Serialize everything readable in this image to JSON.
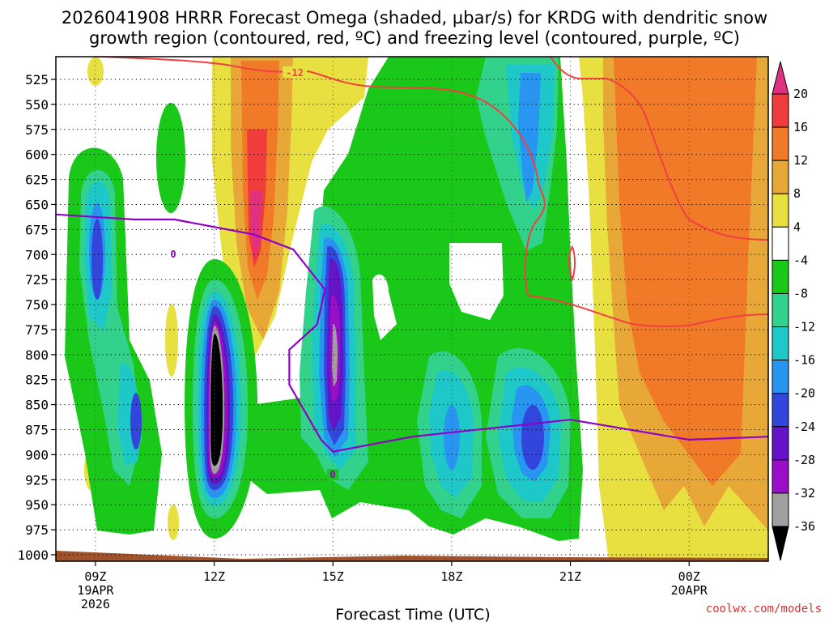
{
  "title_line1": "2026041908 HRRR Forecast Omega (shaded, µbar/s) for KRDG with dendritic snow",
  "title_line2": "growth region (contoured, red, ºC) and freezing level (contoured, purple, ºC)",
  "x_axis_label": "Forecast Time (UTC)",
  "credit": "coolwx.com/models",
  "colors": {
    "red_contour": "#f04040",
    "purple_contour": "#9000c8",
    "ground": "#a0522d"
  },
  "chart_data": {
    "type": "heatmap",
    "x_ticks": [
      {
        "hour": 9,
        "label": "09Z",
        "sub": [
          "19APR",
          "2026"
        ]
      },
      {
        "hour": 12,
        "label": "12Z",
        "sub": []
      },
      {
        "hour": 15,
        "label": "15Z",
        "sub": []
      },
      {
        "hour": 18,
        "label": "18Z",
        "sub": []
      },
      {
        "hour": 21,
        "label": "21Z",
        "sub": []
      },
      {
        "hour": 24,
        "label": "00Z",
        "sub": [
          "20APR"
        ]
      }
    ],
    "x_range_hours": [
      8,
      26
    ],
    "y_levels_mb": [
      525,
      550,
      575,
      600,
      625,
      650,
      675,
      700,
      725,
      750,
      775,
      800,
      825,
      850,
      875,
      900,
      925,
      950,
      975,
      1000
    ],
    "y_range_mb": [
      500,
      1010
    ],
    "colorbar": {
      "labels": [
        "20",
        "16",
        "12",
        "8",
        "4",
        "-4",
        "-8",
        "-12",
        "-16",
        "-20",
        "-24",
        "-28",
        "-32",
        "-36"
      ],
      "colors": [
        "#e0307f",
        "#f03c3c",
        "#f07a28",
        "#e8a838",
        "#e8e040",
        "#ffffff",
        "#19c819",
        "#32d28c",
        "#1ec8c8",
        "#2896f0",
        "#3246dc",
        "#6414c8",
        "#9a0ec8",
        "#a0a0a0",
        "#000000"
      ]
    },
    "omega_regions": [
      {
        "name": "ascent-09z",
        "center_hour": 9.0,
        "center_mb": 680,
        "min_omega": -24
      },
      {
        "name": "ascent-0930z-low",
        "center_hour": 9.8,
        "center_mb": 830,
        "min_omega": -24
      },
      {
        "name": "ascent-12z",
        "center_hour": 12.0,
        "center_mb": 810,
        "min_omega": -36
      },
      {
        "name": "ascent-15z",
        "center_hour": 15.0,
        "center_mb": 760,
        "min_omega": -32
      },
      {
        "name": "ascent-18z",
        "center_hour": 18.0,
        "center_mb": 840,
        "min_omega": -16
      },
      {
        "name": "ascent-20z",
        "center_hour": 20.0,
        "center_mb": 850,
        "min_omega": -24
      },
      {
        "name": "ascent-20z-upper",
        "center_hour": 19.8,
        "center_mb": 560,
        "min_omega": -16
      },
      {
        "name": "subsidence-13z",
        "center_hour": 13.0,
        "center_mb": 650,
        "min_omega": 16
      },
      {
        "name": "subsidence-00z",
        "center_hour": 24.0,
        "center_mb": 700,
        "min_omega": 12
      }
    ],
    "dendritic_contour_label": "-12",
    "freezing_contour_label": "0",
    "freezing_level": [
      {
        "hour": 8,
        "mb": 660
      },
      {
        "hour": 10,
        "mb": 665
      },
      {
        "hour": 11,
        "mb": 665
      },
      {
        "hour": 13,
        "mb": 680
      },
      {
        "hour": 14,
        "mb": 695
      },
      {
        "hour": 14.8,
        "mb": 735
      },
      {
        "hour": 14.6,
        "mb": 770
      },
      {
        "hour": 13.9,
        "mb": 795
      },
      {
        "hour": 13.9,
        "mb": 830
      },
      {
        "hour": 14.7,
        "mb": 885
      },
      {
        "hour": 15,
        "mb": 897
      },
      {
        "hour": 17,
        "mb": 882
      },
      {
        "hour": 21,
        "mb": 865
      },
      {
        "hour": 24,
        "mb": 885
      },
      {
        "hour": 26,
        "mb": 882
      }
    ]
  }
}
